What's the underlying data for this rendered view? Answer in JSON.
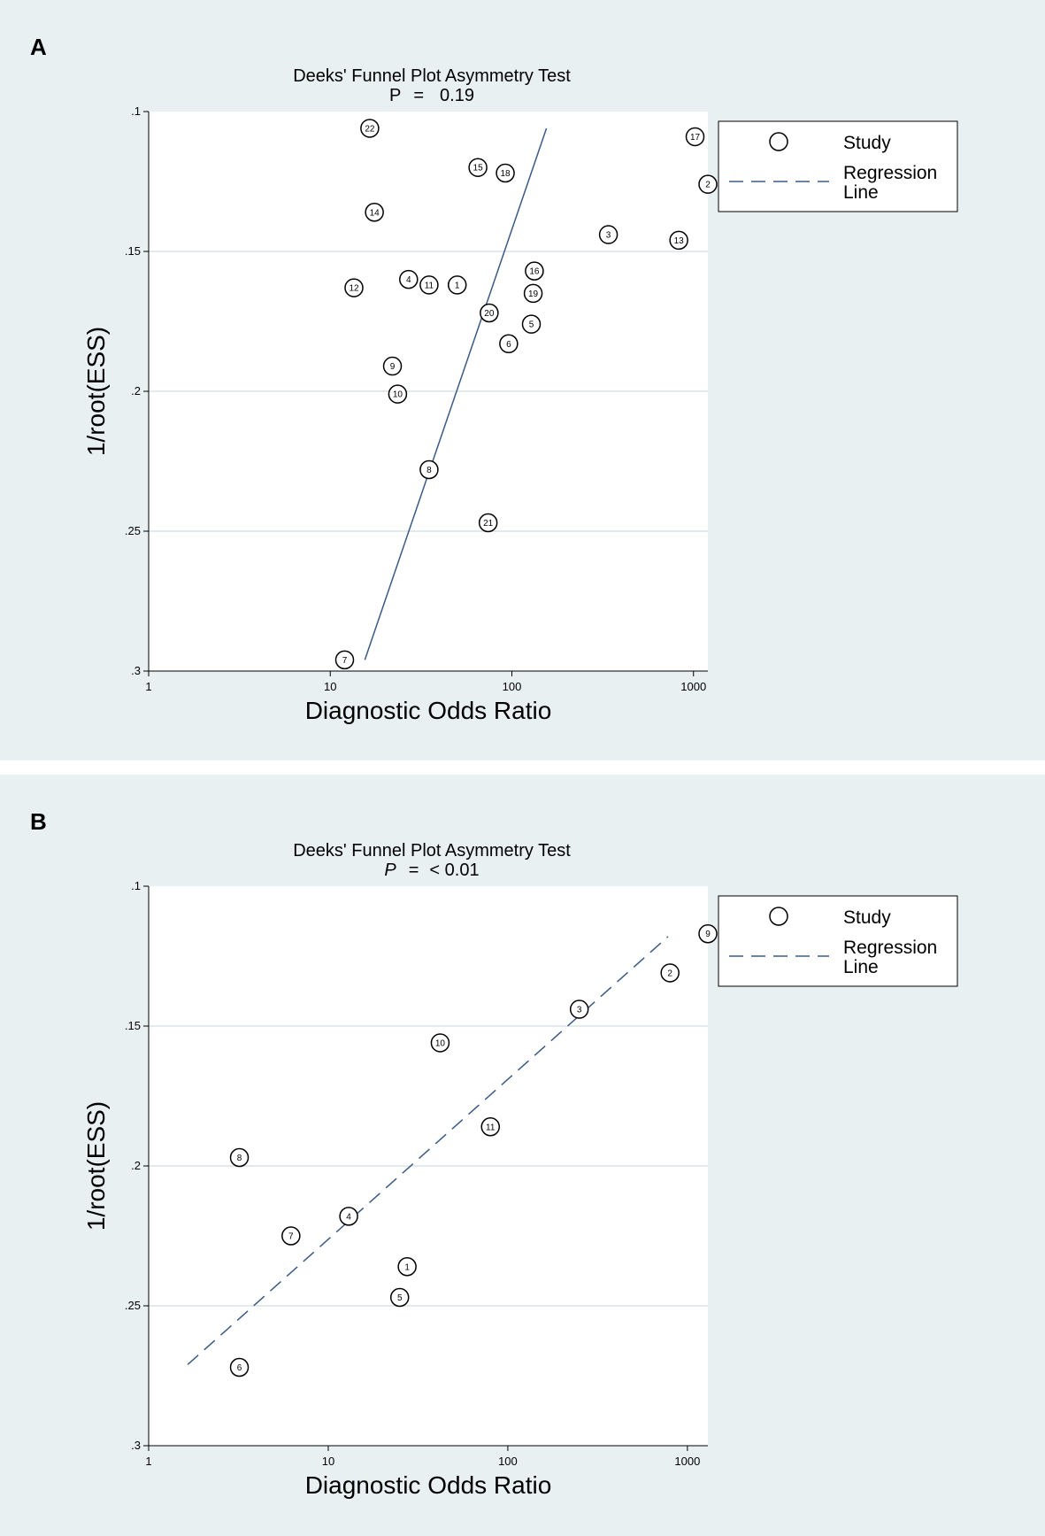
{
  "chart_data": [
    {
      "panel": "A",
      "type": "scatter",
      "title": "Deeks' Funnel Plot Asymmetry Test",
      "p_label": "P",
      "p_eq": "=",
      "p_value": "0.19",
      "xlabel": "Diagnostic Odds Ratio",
      "ylabel": "1/root(ESS)",
      "xscale": "log",
      "xlim": [
        1,
        1200
      ],
      "ylim": [
        0.1,
        0.3
      ],
      "y_reversed": true,
      "xticks": [
        {
          "v": 1,
          "label": "1"
        },
        {
          "v": 10,
          "label": "10"
        },
        {
          "v": 100,
          "label": "100"
        },
        {
          "v": 1000,
          "label": "1000"
        }
      ],
      "yticks": [
        {
          "v": 0.1,
          "label": ".1"
        },
        {
          "v": 0.15,
          "label": ".15"
        },
        {
          "v": 0.2,
          "label": ".2"
        },
        {
          "v": 0.25,
          "label": ".25"
        },
        {
          "v": 0.3,
          "label": ".3"
        }
      ],
      "gridlines": [
        0.15,
        0.2,
        0.25
      ],
      "legend": {
        "position": "top-right",
        "study_label": "Study",
        "line_label_1": "Regression",
        "line_label_2": "Line"
      },
      "points": [
        {
          "label": "1",
          "x": 50,
          "y": 0.162
        },
        {
          "label": "2",
          "x": 1200,
          "y": 0.126
        },
        {
          "label": "3",
          "x": 340,
          "y": 0.144
        },
        {
          "label": "4",
          "x": 27,
          "y": 0.16
        },
        {
          "label": "5",
          "x": 128,
          "y": 0.176
        },
        {
          "label": "6",
          "x": 96,
          "y": 0.183
        },
        {
          "label": "7",
          "x": 12,
          "y": 0.296
        },
        {
          "label": "8",
          "x": 35,
          "y": 0.228
        },
        {
          "label": "9",
          "x": 22,
          "y": 0.191
        },
        {
          "label": "10",
          "x": 23.5,
          "y": 0.201
        },
        {
          "label": "11",
          "x": 35,
          "y": 0.162
        },
        {
          "label": "12",
          "x": 13.5,
          "y": 0.163
        },
        {
          "label": "13",
          "x": 830,
          "y": 0.146
        },
        {
          "label": "14",
          "x": 17.5,
          "y": 0.136
        },
        {
          "label": "15",
          "x": 65,
          "y": 0.12
        },
        {
          "label": "16",
          "x": 133,
          "y": 0.157
        },
        {
          "label": "17",
          "x": 1020,
          "y": 0.109
        },
        {
          "label": "18",
          "x": 92,
          "y": 0.122
        },
        {
          "label": "19",
          "x": 131,
          "y": 0.165
        },
        {
          "label": "20",
          "x": 75,
          "y": 0.172
        },
        {
          "label": "21",
          "x": 74,
          "y": 0.247
        },
        {
          "label": "22",
          "x": 16.5,
          "y": 0.106
        }
      ],
      "regression": {
        "style": "solid",
        "x1": 15.5,
        "y1": 0.296,
        "x2": 155,
        "y2": 0.106
      }
    },
    {
      "panel": "B",
      "type": "scatter",
      "title": "Deeks' Funnel Plot Asymmetry Test",
      "p_label": "P",
      "p_eq": "=",
      "p_value": "< 0.01",
      "xlabel": "Diagnostic Odds Ratio",
      "ylabel": "1/root(ESS)",
      "xscale": "log",
      "xlim": [
        1,
        1300
      ],
      "ylim": [
        0.1,
        0.3
      ],
      "y_reversed": true,
      "xticks": [
        {
          "v": 1,
          "label": "1"
        },
        {
          "v": 10,
          "label": "10"
        },
        {
          "v": 100,
          "label": "100"
        },
        {
          "v": 1000,
          "label": "1000"
        }
      ],
      "yticks": [
        {
          "v": 0.1,
          "label": ".1"
        },
        {
          "v": 0.15,
          "label": ".15"
        },
        {
          "v": 0.2,
          "label": ".2"
        },
        {
          "v": 0.25,
          "label": ".25"
        },
        {
          "v": 0.3,
          "label": ".3"
        }
      ],
      "gridlines": [
        0.15,
        0.2,
        0.25
      ],
      "legend": {
        "position": "top-right",
        "study_label": "Study",
        "line_label_1": "Regression",
        "line_label_2": "Line"
      },
      "points": [
        {
          "label": "1",
          "x": 27.5,
          "y": 0.236
        },
        {
          "label": "2",
          "x": 800,
          "y": 0.131
        },
        {
          "label": "3",
          "x": 250,
          "y": 0.144
        },
        {
          "label": "4",
          "x": 13,
          "y": 0.218
        },
        {
          "label": "5",
          "x": 25,
          "y": 0.247
        },
        {
          "label": "6",
          "x": 3.2,
          "y": 0.272
        },
        {
          "label": "7",
          "x": 6.2,
          "y": 0.225
        },
        {
          "label": "8",
          "x": 3.2,
          "y": 0.197
        },
        {
          "label": "9",
          "x": 1300,
          "y": 0.117
        },
        {
          "label": "10",
          "x": 42,
          "y": 0.156
        },
        {
          "label": "11",
          "x": 80,
          "y": 0.186
        }
      ],
      "regression": {
        "style": "dashed",
        "x1": 1.65,
        "y1": 0.271,
        "x2": 780,
        "y2": 0.118
      }
    }
  ]
}
